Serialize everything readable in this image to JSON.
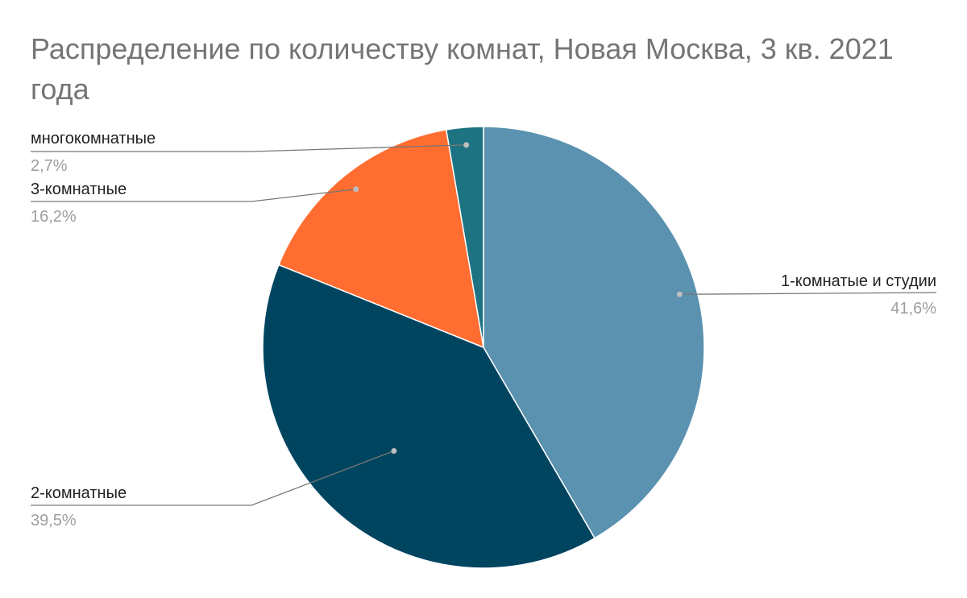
{
  "title": "Распределение по количеству комнат, Новая Москва, 3 кв. 2021 года",
  "chart_data": {
    "type": "pie",
    "title": "Распределение по количеству комнат, Новая Москва, 3 кв. 2021 года",
    "legend": "labels beside slices",
    "slices": [
      {
        "label": "1-комнатые и студии",
        "value": 41.6,
        "display": "41,6%",
        "color": "#5a92b0"
      },
      {
        "label": "2-комнатные",
        "value": 39.5,
        "display": "39,5%",
        "color": "#004560"
      },
      {
        "label": "3-комнатные",
        "value": 16.2,
        "display": "16,2%",
        "color": "#ff6d31"
      },
      {
        "label": "многокомнатные",
        "value": 2.7,
        "display": "2,7%",
        "color": "#1e7383"
      }
    ]
  }
}
